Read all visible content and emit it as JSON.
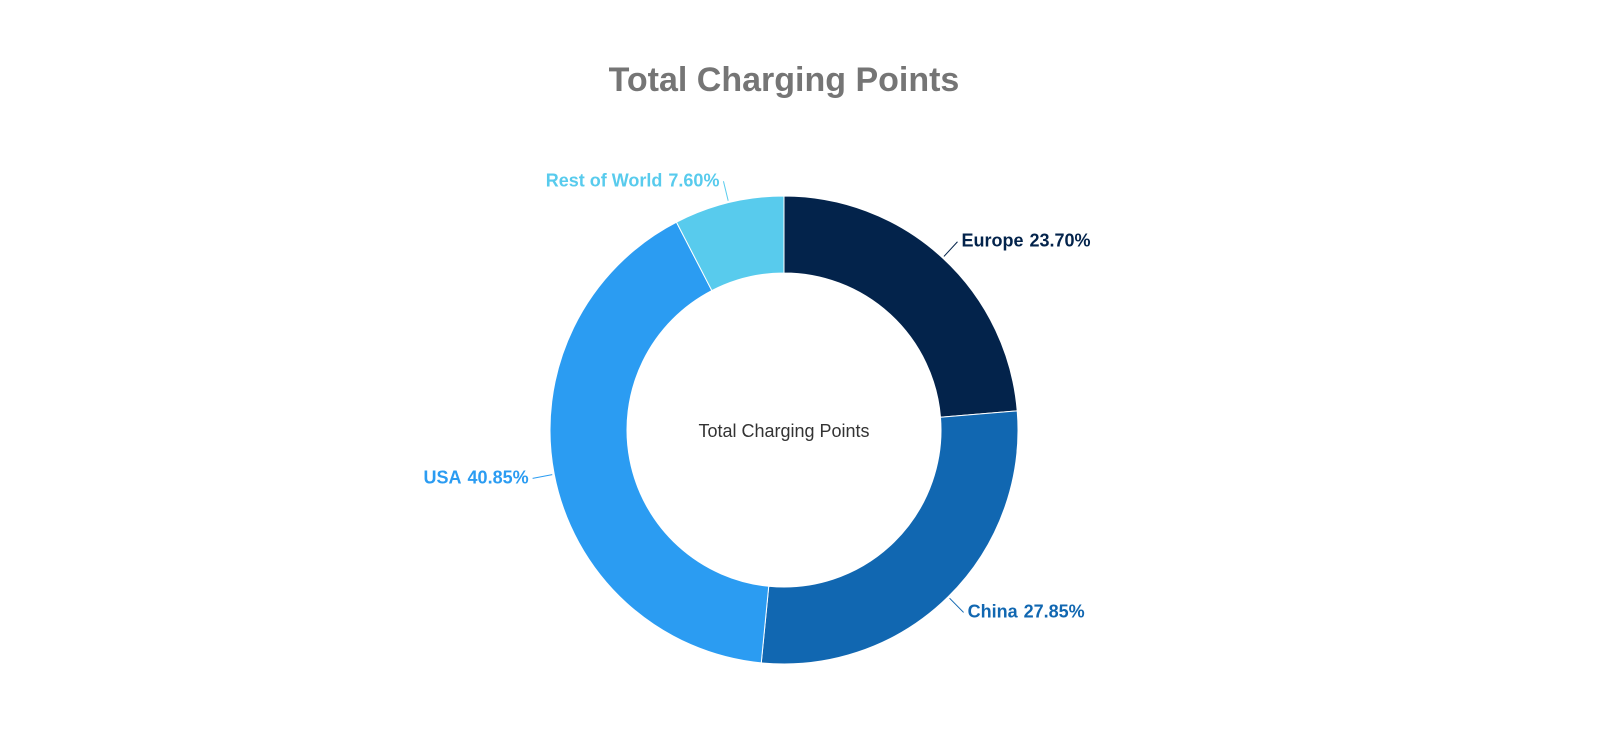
{
  "chart_data": {
    "type": "donut",
    "title": "Total Charging Points",
    "center_label": "Total Charging Points",
    "categories": [
      "Europe",
      "China",
      "USA",
      "Rest of World"
    ],
    "values": [
      23.7,
      27.85,
      40.85,
      7.6
    ],
    "value_labels": [
      "23.70%",
      "27.85%",
      "40.85%",
      "7.60%"
    ],
    "colors": [
      "#03234b",
      "#1167b1",
      "#2b9cf2",
      "#58cbed"
    ]
  }
}
